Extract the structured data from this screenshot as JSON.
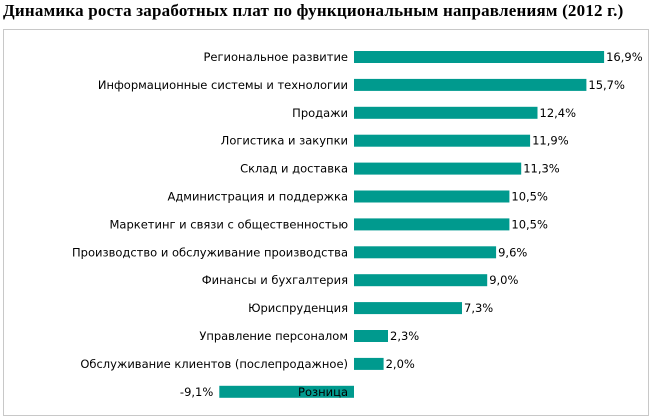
{
  "title": "Динамика роста заработных плат по функциональным направлениям (2012 г.)",
  "chart_data": {
    "type": "bar",
    "orientation": "horizontal",
    "title": "Динамика роста заработных плат по функциональным направлениям (2012 г.)",
    "categories": [
      "Региональное развитие",
      "Информационные системы и технологии",
      "Продажи",
      "Логистика и закупки",
      "Склад и доставка",
      "Администрация и поддержка",
      "Маркетинг и связи с общественностью",
      "Производство и обслуживание производства",
      "Финансы и бухгалтерия",
      "Юриспруденция",
      "Управление персоналом",
      "Обслуживание клиентов (послепродажное)",
      "Розница"
    ],
    "values": [
      16.9,
      15.7,
      12.4,
      11.9,
      11.3,
      10.5,
      10.5,
      9.6,
      9.0,
      7.3,
      2.3,
      2.0,
      -9.1
    ],
    "value_labels": [
      "16,9%",
      "15,7%",
      "12,4%",
      "11,9%",
      "11,3%",
      "10,5%",
      "10,5%",
      "9,6%",
      "9,0%",
      "7,3%",
      "2,3%",
      "2,0%",
      "-9,1%"
    ],
    "unit": "%",
    "bar_color": "#009a8e",
    "xlim": [
      -9.1,
      16.9
    ],
    "grid": false,
    "legend": "none"
  }
}
